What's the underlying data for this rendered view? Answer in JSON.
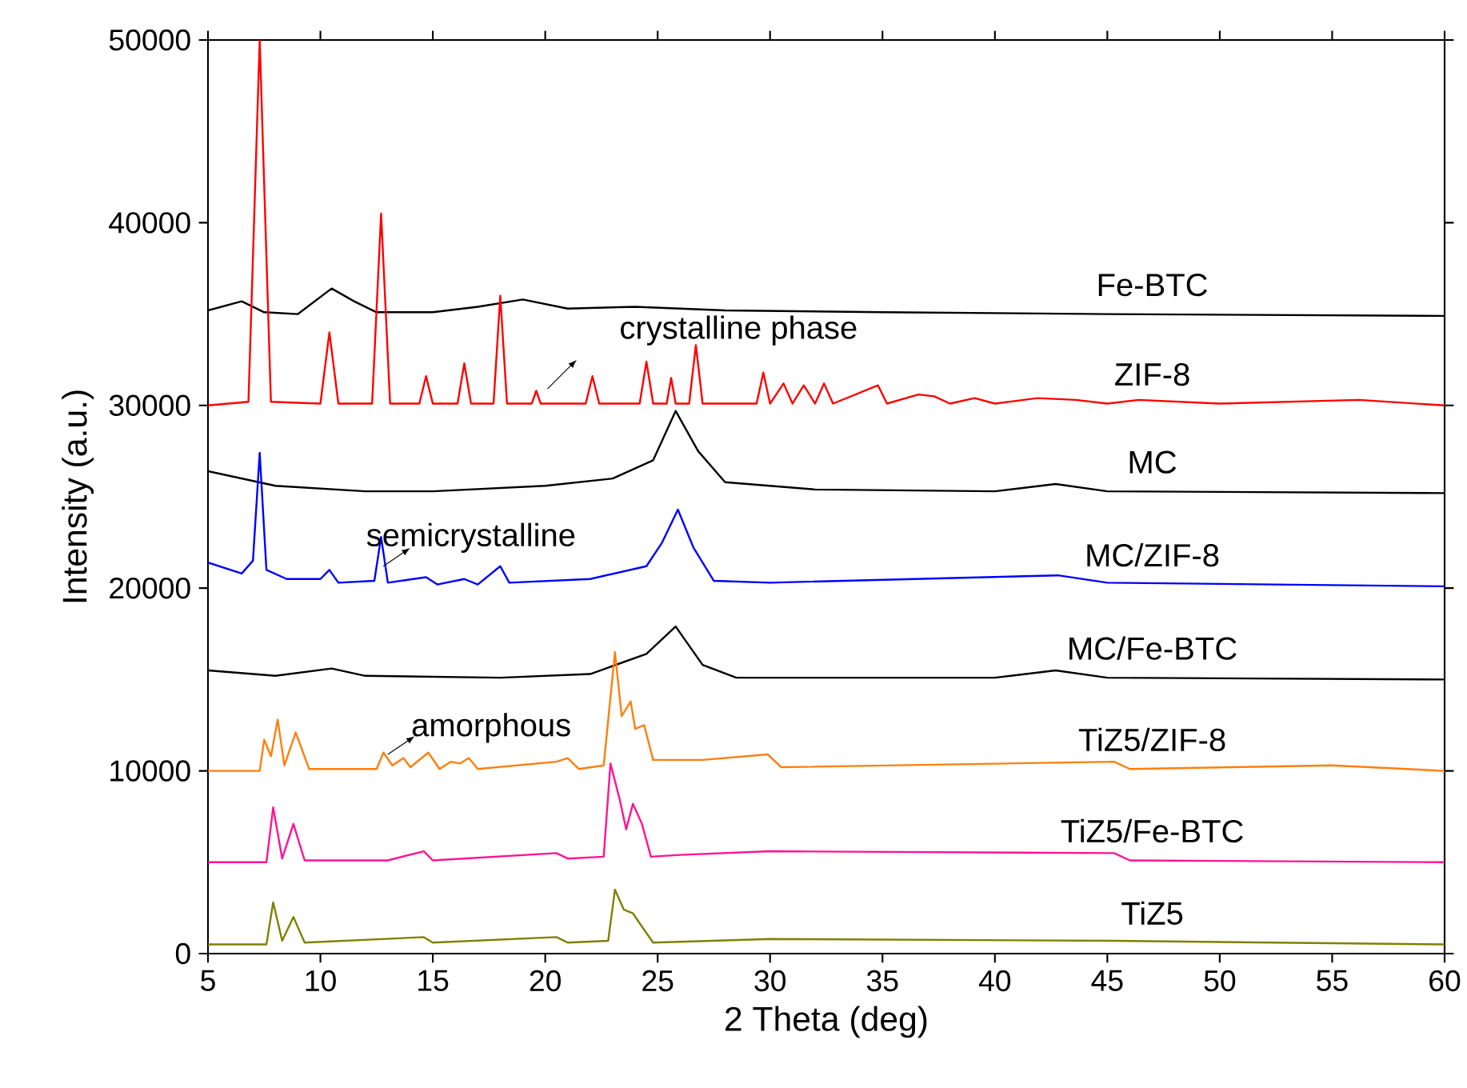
{
  "chart_data": {
    "type": "line",
    "xlabel": "2 Theta (deg)",
    "ylabel": "Intensity (a.u.)",
    "xlim": [
      5,
      60
    ],
    "ylim": [
      0,
      50000
    ],
    "xticks": [
      5,
      10,
      15,
      20,
      25,
      30,
      35,
      40,
      45,
      50,
      55,
      60
    ],
    "yticks": [
      0,
      10000,
      20000,
      30000,
      40000,
      50000
    ],
    "annotations": [
      "crystalline phase",
      "semicrystalline",
      "amorphous"
    ],
    "series": [
      {
        "name": "Fe-BTC",
        "color": "#000000",
        "x": [
          5,
          6.5,
          7.5,
          9,
          10.5,
          11.5,
          12.5,
          15,
          17,
          19,
          21,
          24,
          28,
          35,
          45,
          60
        ],
        "values": [
          35200,
          35700,
          35100,
          35000,
          36400,
          35700,
          35100,
          35100,
          35400,
          35800,
          35300,
          35400,
          35200,
          35100,
          35000,
          34900
        ]
      },
      {
        "name": "ZIF-8",
        "color": "#ff0000",
        "x": [
          5,
          6.8,
          7.3,
          7.8,
          10.0,
          10.4,
          10.8,
          12.3,
          12.7,
          13.1,
          14.4,
          14.7,
          15.0,
          16.1,
          16.4,
          16.7,
          17.7,
          18.0,
          18.3,
          19.4,
          19.6,
          19.8,
          21.8,
          22.1,
          22.4,
          24.2,
          24.5,
          24.8,
          25.4,
          25.6,
          25.8,
          26.4,
          26.7,
          27.0,
          29.4,
          29.7,
          30.0,
          30.6,
          31.0,
          31.5,
          32.0,
          32.4,
          32.8,
          34.8,
          35.2,
          36.6,
          37.3,
          38,
          39.1,
          40,
          41.9,
          43.6,
          45,
          46.4,
          50,
          56.2,
          60
        ],
        "values": [
          30000,
          30200,
          50000,
          30200,
          30100,
          34000,
          30100,
          30100,
          40500,
          30100,
          30100,
          31600,
          30100,
          30100,
          32300,
          30100,
          30100,
          36000,
          30100,
          30100,
          30800,
          30100,
          30100,
          31600,
          30100,
          30100,
          32400,
          30100,
          30100,
          31500,
          30100,
          30100,
          33300,
          30100,
          30100,
          31800,
          30100,
          31200,
          30100,
          31100,
          30100,
          31200,
          30100,
          31100,
          30100,
          30600,
          30500,
          30100,
          30400,
          30100,
          30400,
          30300,
          30100,
          30300,
          30100,
          30300,
          30000
        ]
      },
      {
        "name": "MC",
        "color": "#000000",
        "x": [
          5,
          8,
          12,
          15,
          20,
          23,
          24.8,
          25.8,
          26.8,
          28,
          32,
          40,
          42.7,
          45,
          60
        ],
        "values": [
          26400,
          25600,
          25300,
          25300,
          25600,
          26000,
          27000,
          29700,
          27500,
          25800,
          25400,
          25300,
          25700,
          25300,
          25200
        ]
      },
      {
        "name": "MC/ZIF-8",
        "color": "#0000ff",
        "x": [
          5,
          6.5,
          7.0,
          7.3,
          7.6,
          8.5,
          10.0,
          10.4,
          10.8,
          12.4,
          12.7,
          13.0,
          14.7,
          15.2,
          16.4,
          17.0,
          18.0,
          18.4,
          22.0,
          24.5,
          25.2,
          25.9,
          26.6,
          27.5,
          30,
          42.8,
          45,
          60
        ],
        "values": [
          21400,
          20800,
          21500,
          27400,
          21000,
          20500,
          20500,
          21000,
          20300,
          20400,
          22800,
          20300,
          20600,
          20200,
          20500,
          20200,
          21200,
          20300,
          20500,
          21200,
          22500,
          24300,
          22200,
          20400,
          20300,
          20700,
          20300,
          20100
        ]
      },
      {
        "name": "MC/Fe-BTC",
        "color": "#000000",
        "x": [
          5,
          8,
          10.5,
          12,
          18,
          22,
          24.5,
          25.8,
          27,
          28.5,
          40,
          42.7,
          45,
          60
        ],
        "values": [
          15500,
          15200,
          15600,
          15200,
          15100,
          15300,
          16400,
          17900,
          15800,
          15100,
          15100,
          15500,
          15100,
          15000
        ]
      },
      {
        "name": "TiZ5/ZIF-8",
        "color": "#ff7f0e",
        "x": [
          5,
          7.3,
          7.5,
          7.8,
          8.1,
          8.4,
          8.9,
          9.5,
          12.5,
          12.8,
          13.2,
          13.7,
          14.0,
          14.8,
          15.3,
          15.8,
          16.2,
          16.6,
          17,
          20.5,
          21,
          21.5,
          22.6,
          23.1,
          23.4,
          23.8,
          24.0,
          24.4,
          24.8,
          26.0,
          27,
          29.9,
          30.5,
          45.3,
          46,
          55,
          60
        ],
        "values": [
          10000,
          10000,
          11700,
          10800,
          12800,
          10300,
          12100,
          10100,
          10100,
          11000,
          10300,
          10700,
          10200,
          11000,
          10100,
          10500,
          10400,
          10700,
          10100,
          10500,
          10700,
          10100,
          10300,
          16500,
          13000,
          13800,
          12300,
          12500,
          10600,
          10600,
          10600,
          10900,
          10200,
          10500,
          10100,
          10300,
          10000
        ]
      },
      {
        "name": "TiZ5/Fe-BTC",
        "color": "#ff1493",
        "x": [
          5,
          7.6,
          7.9,
          8.3,
          8.8,
          9.3,
          13,
          14.6,
          15,
          20.5,
          21,
          22.6,
          22.9,
          23.3,
          23.6,
          23.9,
          24.3,
          24.7,
          26,
          30,
          45.3,
          46,
          60
        ],
        "values": [
          5000,
          5000,
          8000,
          5200,
          7100,
          5100,
          5100,
          5600,
          5100,
          5500,
          5200,
          5300,
          10400,
          8500,
          6800,
          8200,
          7100,
          5300,
          5400,
          5600,
          5500,
          5100,
          5000
        ]
      },
      {
        "name": "TiZ5",
        "color": "#808000",
        "x": [
          5,
          7.6,
          7.9,
          8.3,
          8.8,
          9.3,
          14.6,
          15,
          20.5,
          21,
          22.8,
          23.1,
          23.5,
          23.9,
          24.4,
          24.8,
          30,
          45.3,
          60
        ],
        "values": [
          500,
          500,
          2800,
          700,
          2000,
          600,
          900,
          600,
          900,
          600,
          700,
          3500,
          2400,
          2200,
          1300,
          600,
          800,
          700,
          500
        ]
      }
    ]
  }
}
